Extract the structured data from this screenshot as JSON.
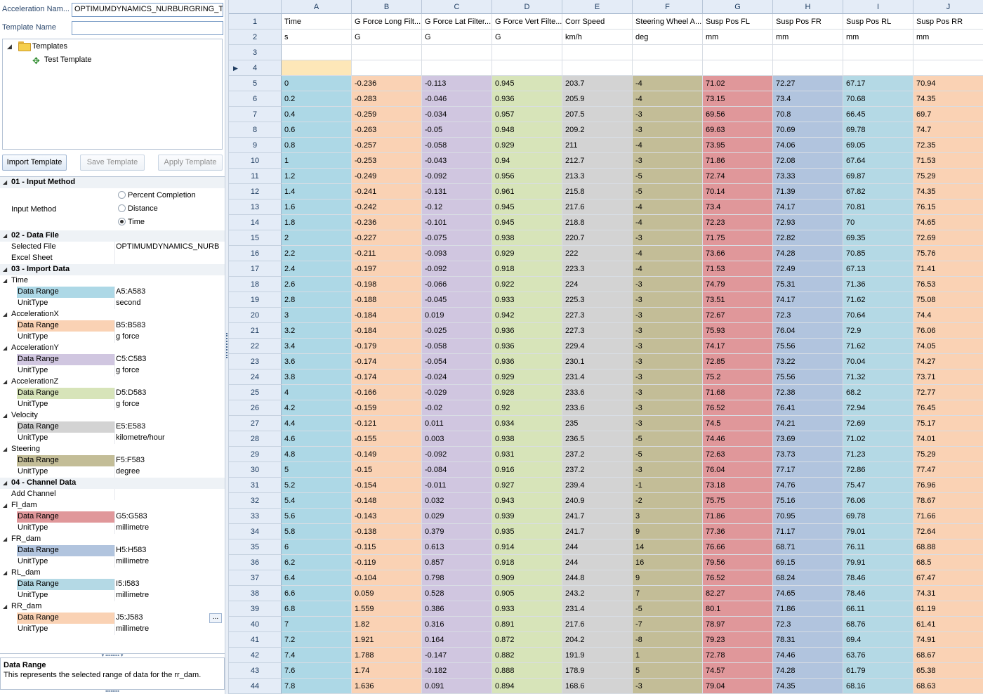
{
  "fields": {
    "acceleration_name_label": "Acceleration Nam...",
    "acceleration_name_value": "OPTIMUMDYNAMICS_NURBURGRING_T",
    "template_name_label": "Template Name",
    "template_name_value": ""
  },
  "tree": {
    "root": "Templates",
    "child": "Test Template",
    "expand_glyph": "◢",
    "child_icon": "✥"
  },
  "buttons": {
    "import": "Import Template",
    "save": "Save Template",
    "apply": "Apply Template"
  },
  "input_method": {
    "category": "01 - Input Method",
    "label": "Input Method",
    "options": [
      "Percent Completion",
      "Distance",
      "Time"
    ],
    "selected": "Time"
  },
  "data_file": {
    "category": "02 - Data File",
    "rows": [
      {
        "name": "Selected File",
        "value": "OPTIMUMDYNAMICS_NURB"
      },
      {
        "name": "Excel Sheet",
        "value": ""
      }
    ]
  },
  "import_data": {
    "category": "03 - Import Data",
    "groups": [
      {
        "name": "Time",
        "range": "A5:A583",
        "unit": "second",
        "color": "#add8e6"
      },
      {
        "name": "AccelerationX",
        "range": "B5:B583",
        "unit": "g force",
        "color": "#fad2b4"
      },
      {
        "name": "AccelerationY",
        "range": "C5:C583",
        "unit": "g force",
        "color": "#d0c6e0"
      },
      {
        "name": "AccelerationZ",
        "range": "D5:D583",
        "unit": "g force",
        "color": "#d7e4b9"
      },
      {
        "name": "Velocity",
        "range": "E5:E583",
        "unit": "kilometre/hour",
        "color": "#d3d3d3"
      },
      {
        "name": "Steering",
        "range": "F5:F583",
        "unit": "degree",
        "color": "#c3bd97"
      }
    ]
  },
  "channel_data": {
    "category": "04 - Channel Data",
    "add_label": "Add Channel",
    "groups": [
      {
        "name": "Fl_dam",
        "range": "G5:G583",
        "unit": "millimetre",
        "color": "#e0979a"
      },
      {
        "name": "FR_dam",
        "range": "H5:H583",
        "unit": "millimetre",
        "color": "#b1c4de"
      },
      {
        "name": "RL_dam",
        "range": "I5:I583",
        "unit": "millimetre",
        "color": "#b4d9e5"
      },
      {
        "name": "RR_dam",
        "range": "J5:J583",
        "unit": "millimetre",
        "color": "#fad2b4"
      }
    ]
  },
  "prop_labels": {
    "range": "Data Range",
    "unit": "UnitType",
    "ellipsis": "..."
  },
  "help": {
    "title": "Data Range",
    "desc": "This represents the selected range of data for the rr_dam."
  },
  "sheet": {
    "columns": [
      "A",
      "B",
      "C",
      "D",
      "E",
      "F",
      "G",
      "H",
      "I",
      "J"
    ],
    "header_names": [
      "Time",
      "G Force Long Filt...",
      "G Force Lat Filter...",
      "G Force Vert Filte...",
      "Corr Speed",
      "Steering Wheel A...",
      "Susp Pos FL",
      "Susp Pos FR",
      "Susp Pos RL",
      "Susp Pos RR"
    ],
    "units": [
      "s",
      "G",
      "G",
      "G",
      "km/h",
      "deg",
      "mm",
      "mm",
      "mm",
      "mm"
    ],
    "current_row_marker": "▶",
    "row_numbers": [
      "1",
      "2",
      "3",
      "4",
      "5",
      "6",
      "7",
      "8",
      "9",
      "10",
      "11",
      "12",
      "13",
      "14",
      "15",
      "16",
      "17",
      "18",
      "19",
      "20",
      "21",
      "22",
      "23",
      "24",
      "25",
      "26",
      "27",
      "28",
      "29",
      "30",
      "31",
      "32",
      "33",
      "34",
      "35",
      "36",
      "37",
      "38",
      "39",
      "40",
      "41",
      "42",
      "43",
      "44"
    ],
    "data": [
      [
        "0",
        "-0.236",
        "-0.113",
        "0.945",
        "203.7",
        "-4",
        "71.02",
        "72.27",
        "67.17",
        "70.94"
      ],
      [
        "0.2",
        "-0.283",
        "-0.046",
        "0.936",
        "205.9",
        "-4",
        "73.15",
        "73.4",
        "70.68",
        "74.35"
      ],
      [
        "0.4",
        "-0.259",
        "-0.034",
        "0.957",
        "207.5",
        "-3",
        "69.56",
        "70.8",
        "66.45",
        "69.7"
      ],
      [
        "0.6",
        "-0.263",
        "-0.05",
        "0.948",
        "209.2",
        "-3",
        "69.63",
        "70.69",
        "69.78",
        "74.7"
      ],
      [
        "0.8",
        "-0.257",
        "-0.058",
        "0.929",
        "211",
        "-4",
        "73.95",
        "74.06",
        "69.05",
        "72.35"
      ],
      [
        "1",
        "-0.253",
        "-0.043",
        "0.94",
        "212.7",
        "-3",
        "71.86",
        "72.08",
        "67.64",
        "71.53"
      ],
      [
        "1.2",
        "-0.249",
        "-0.092",
        "0.956",
        "213.3",
        "-5",
        "72.74",
        "73.33",
        "69.87",
        "75.29"
      ],
      [
        "1.4",
        "-0.241",
        "-0.131",
        "0.961",
        "215.8",
        "-5",
        "70.14",
        "71.39",
        "67.82",
        "74.35"
      ],
      [
        "1.6",
        "-0.242",
        "-0.12",
        "0.945",
        "217.6",
        "-4",
        "73.4",
        "74.17",
        "70.81",
        "76.15"
      ],
      [
        "1.8",
        "-0.236",
        "-0.101",
        "0.945",
        "218.8",
        "-4",
        "72.23",
        "72.93",
        "70",
        "74.65"
      ],
      [
        "2",
        "-0.227",
        "-0.075",
        "0.938",
        "220.7",
        "-3",
        "71.75",
        "72.82",
        "69.35",
        "72.69"
      ],
      [
        "2.2",
        "-0.211",
        "-0.093",
        "0.929",
        "222",
        "-4",
        "73.66",
        "74.28",
        "70.85",
        "75.76"
      ],
      [
        "2.4",
        "-0.197",
        "-0.092",
        "0.918",
        "223.3",
        "-4",
        "71.53",
        "72.49",
        "67.13",
        "71.41"
      ],
      [
        "2.6",
        "-0.198",
        "-0.066",
        "0.922",
        "224",
        "-3",
        "74.79",
        "75.31",
        "71.36",
        "76.53"
      ],
      [
        "2.8",
        "-0.188",
        "-0.045",
        "0.933",
        "225.3",
        "-3",
        "73.51",
        "74.17",
        "71.62",
        "75.08"
      ],
      [
        "3",
        "-0.184",
        "0.019",
        "0.942",
        "227.3",
        "-3",
        "72.67",
        "72.3",
        "70.64",
        "74.4"
      ],
      [
        "3.2",
        "-0.184",
        "-0.025",
        "0.936",
        "227.3",
        "-3",
        "75.93",
        "76.04",
        "72.9",
        "76.06"
      ],
      [
        "3.4",
        "-0.179",
        "-0.058",
        "0.936",
        "229.4",
        "-3",
        "74.17",
        "75.56",
        "71.62",
        "74.05"
      ],
      [
        "3.6",
        "-0.174",
        "-0.054",
        "0.936",
        "230.1",
        "-3",
        "72.85",
        "73.22",
        "70.04",
        "74.27"
      ],
      [
        "3.8",
        "-0.174",
        "-0.024",
        "0.929",
        "231.4",
        "-3",
        "75.2",
        "75.56",
        "71.32",
        "73.71"
      ],
      [
        "4",
        "-0.166",
        "-0.029",
        "0.928",
        "233.6",
        "-3",
        "71.68",
        "72.38",
        "68.2",
        "72.77"
      ],
      [
        "4.2",
        "-0.159",
        "-0.02",
        "0.92",
        "233.6",
        "-3",
        "76.52",
        "76.41",
        "72.94",
        "76.45"
      ],
      [
        "4.4",
        "-0.121",
        "0.011",
        "0.934",
        "235",
        "-3",
        "74.5",
        "74.21",
        "72.69",
        "75.17"
      ],
      [
        "4.6",
        "-0.155",
        "0.003",
        "0.938",
        "236.5",
        "-5",
        "74.46",
        "73.69",
        "71.02",
        "74.01"
      ],
      [
        "4.8",
        "-0.149",
        "-0.092",
        "0.931",
        "237.2",
        "-5",
        "72.63",
        "73.73",
        "71.23",
        "75.29"
      ],
      [
        "5",
        "-0.15",
        "-0.084",
        "0.916",
        "237.2",
        "-3",
        "76.04",
        "77.17",
        "72.86",
        "77.47"
      ],
      [
        "5.2",
        "-0.154",
        "-0.011",
        "0.927",
        "239.4",
        "-1",
        "73.18",
        "74.76",
        "75.47",
        "76.96"
      ],
      [
        "5.4",
        "-0.148",
        "0.032",
        "0.943",
        "240.9",
        "-2",
        "75.75",
        "75.16",
        "76.06",
        "78.67"
      ],
      [
        "5.6",
        "-0.143",
        "0.029",
        "0.939",
        "241.7",
        "3",
        "71.86",
        "70.95",
        "69.78",
        "71.66"
      ],
      [
        "5.8",
        "-0.138",
        "0.379",
        "0.935",
        "241.7",
        "9",
        "77.36",
        "71.17",
        "79.01",
        "72.64"
      ],
      [
        "6",
        "-0.115",
        "0.613",
        "0.914",
        "244",
        "14",
        "76.66",
        "68.71",
        "76.11",
        "68.88"
      ],
      [
        "6.2",
        "-0.119",
        "0.857",
        "0.918",
        "244",
        "16",
        "79.56",
        "69.15",
        "79.91",
        "68.5"
      ],
      [
        "6.4",
        "-0.104",
        "0.798",
        "0.909",
        "244.8",
        "9",
        "76.52",
        "68.24",
        "78.46",
        "67.47"
      ],
      [
        "6.6",
        "0.059",
        "0.528",
        "0.905",
        "243.2",
        "7",
        "82.27",
        "74.65",
        "78.46",
        "74.31"
      ],
      [
        "6.8",
        "1.559",
        "0.386",
        "0.933",
        "231.4",
        "-5",
        "80.1",
        "71.86",
        "66.11",
        "61.19"
      ],
      [
        "7",
        "1.82",
        "0.316",
        "0.891",
        "217.6",
        "-7",
        "78.97",
        "72.3",
        "68.76",
        "61.41"
      ],
      [
        "7.2",
        "1.921",
        "0.164",
        "0.872",
        "204.2",
        "-8",
        "79.23",
        "78.31",
        "69.4",
        "74.91"
      ],
      [
        "7.4",
        "1.788",
        "-0.147",
        "0.882",
        "191.9",
        "1",
        "72.78",
        "74.46",
        "63.76",
        "68.67"
      ],
      [
        "7.6",
        "1.74",
        "-0.182",
        "0.888",
        "178.9",
        "5",
        "74.57",
        "74.28",
        "61.79",
        "65.38"
      ],
      [
        "7.8",
        "1.636",
        "0.091",
        "0.894",
        "168.6",
        "-3",
        "79.04",
        "74.35",
        "68.16",
        "68.63"
      ]
    ]
  }
}
